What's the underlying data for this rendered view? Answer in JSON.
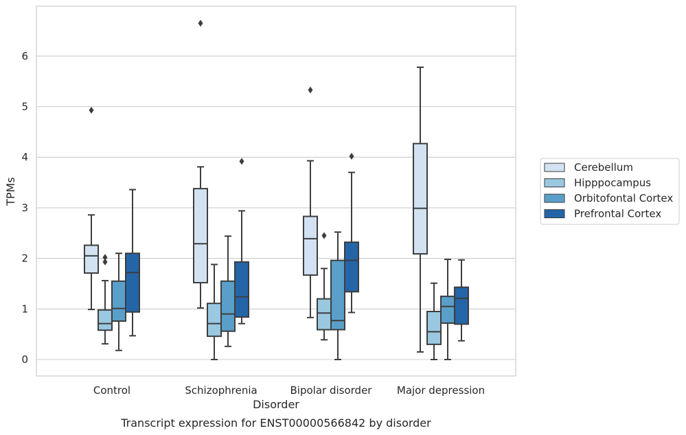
{
  "chart_data": {
    "type": "box",
    "xlabel": "Disorder",
    "ylabel": "TPMs",
    "caption": "Transcript expression for ENST00000566842 by disorder",
    "ylim": [
      -0.32,
      6.99
    ],
    "yticks": [
      0,
      1,
      2,
      3,
      4,
      5,
      6
    ],
    "grid": "horizontal",
    "legend_position": "right",
    "categories": [
      "Control",
      "Schizophrenia",
      "Bipolar disorder",
      "Major depression"
    ],
    "series": [
      {
        "name": "Cerebellum",
        "color": "#d2e2f2",
        "boxes": [
          {
            "whislo": 0.99,
            "q1": 1.71,
            "median": 2.05,
            "q3": 2.26,
            "whishi": 2.86,
            "fliers": [
              4.93
            ]
          },
          {
            "whislo": 1.02,
            "q1": 1.52,
            "median": 2.29,
            "q3": 3.38,
            "whishi": 3.81,
            "fliers": [
              6.65
            ]
          },
          {
            "whislo": 0.83,
            "q1": 1.67,
            "median": 2.39,
            "q3": 2.83,
            "whishi": 3.93,
            "fliers": [
              5.33
            ]
          },
          {
            "whislo": 0.15,
            "q1": 2.09,
            "median": 2.99,
            "q3": 4.27,
            "whishi": 5.78,
            "fliers": []
          }
        ]
      },
      {
        "name": "Hipppocampus",
        "color": "#9ac8e0",
        "boxes": [
          {
            "whislo": 0.31,
            "q1": 0.58,
            "median": 0.71,
            "q3": 0.98,
            "whishi": 1.56,
            "fliers": [
              2.02,
              1.93
            ]
          },
          {
            "whislo": 0.0,
            "q1": 0.46,
            "median": 0.71,
            "q3": 1.11,
            "whishi": 1.88,
            "fliers": []
          },
          {
            "whislo": 0.39,
            "q1": 0.59,
            "median": 0.92,
            "q3": 1.2,
            "whishi": 1.8,
            "fliers": [
              2.45
            ]
          },
          {
            "whislo": 0.0,
            "q1": 0.3,
            "median": 0.55,
            "q3": 0.95,
            "whishi": 1.51,
            "fliers": []
          }
        ]
      },
      {
        "name": "Orbitofontal Cortex",
        "color": "#5a9fca",
        "boxes": [
          {
            "whislo": 0.18,
            "q1": 0.76,
            "median": 1.01,
            "q3": 1.55,
            "whishi": 2.1,
            "fliers": []
          },
          {
            "whislo": 0.26,
            "q1": 0.56,
            "median": 0.9,
            "q3": 1.55,
            "whishi": 2.44,
            "fliers": []
          },
          {
            "whislo": 0.0,
            "q1": 0.59,
            "median": 0.77,
            "q3": 1.96,
            "whishi": 2.52,
            "fliers": []
          },
          {
            "whislo": 0.0,
            "q1": 0.72,
            "median": 1.05,
            "q3": 1.25,
            "whishi": 1.98,
            "fliers": []
          }
        ]
      },
      {
        "name": "Prefrontal Cortex",
        "color": "#2465a7",
        "boxes": [
          {
            "whislo": 0.47,
            "q1": 0.94,
            "median": 1.72,
            "q3": 2.1,
            "whishi": 3.36,
            "fliers": []
          },
          {
            "whislo": 0.71,
            "q1": 0.84,
            "median": 1.24,
            "q3": 1.93,
            "whishi": 2.94,
            "fliers": [
              3.92
            ]
          },
          {
            "whislo": 0.93,
            "q1": 1.34,
            "median": 1.96,
            "q3": 2.32,
            "whishi": 3.7,
            "fliers": [
              4.02
            ]
          },
          {
            "whislo": 0.37,
            "q1": 0.7,
            "median": 1.21,
            "q3": 1.43,
            "whishi": 1.97,
            "fliers": []
          }
        ]
      }
    ]
  }
}
